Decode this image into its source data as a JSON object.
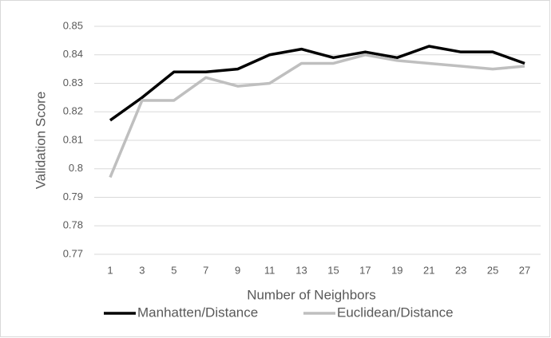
{
  "chart_data": {
    "type": "line",
    "x_label": "Number of Neighbors",
    "y_label": "Validation Score",
    "categories": [
      "1",
      "3",
      "5",
      "7",
      "9",
      "11",
      "13",
      "15",
      "17",
      "19",
      "21",
      "23",
      "25",
      "27"
    ],
    "series": [
      {
        "name": "Manhatten/Distance",
        "color": "#000000",
        "values": [
          0.817,
          0.825,
          0.834,
          0.834,
          0.835,
          0.84,
          0.842,
          0.839,
          0.841,
          0.839,
          0.843,
          0.841,
          0.841,
          0.837
        ]
      },
      {
        "name": "Euclidean/Distance",
        "color": "#bfbfbf",
        "values": [
          0.797,
          0.824,
          0.824,
          0.832,
          0.829,
          0.83,
          0.837,
          0.837,
          0.84,
          0.838,
          0.837,
          0.836,
          0.835,
          0.836
        ]
      }
    ],
    "ylim": [
      0.77,
      0.85
    ],
    "yticks": [
      0.77,
      0.78,
      0.79,
      0.8,
      0.81,
      0.82,
      0.83,
      0.84,
      0.85
    ],
    "grid": true,
    "legend": "bottom"
  }
}
